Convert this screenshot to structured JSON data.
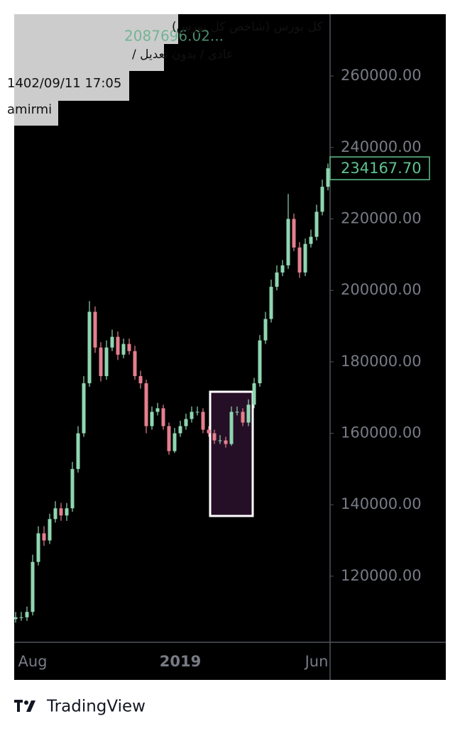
{
  "chart_data": {
    "type": "candlestick",
    "title": "کل بورس (شاخص کل بورس)",
    "subtitle": "عادی / بدون تعدیل /",
    "timestamp": "1402/09/11 17:05",
    "author": "amirmi",
    "overlay_value": "2087696.02...",
    "brand": "TradingView",
    "up_color": "#8fd6b0",
    "down_color": "#e57f8d",
    "categories": [
      null,
      null,
      null,
      "Aug",
      null,
      null,
      null,
      null,
      null,
      null,
      null,
      null,
      null,
      null,
      null,
      null,
      null,
      null,
      null,
      null,
      null,
      null,
      null,
      null,
      null,
      null,
      null,
      null,
      null,
      "2019",
      null,
      null,
      null,
      null,
      null,
      null,
      null,
      null,
      null,
      null,
      null,
      null,
      null,
      null,
      null,
      null,
      null,
      null,
      null,
      null,
      null,
      null,
      null,
      "Jun",
      null,
      null
    ],
    "open": [
      108000,
      108500,
      108500,
      110000,
      124000,
      132000,
      130000,
      136000,
      139000,
      137000,
      139000,
      150000,
      160000,
      174000,
      194000,
      184000,
      176000,
      184000,
      187000,
      182000,
      185000,
      183000,
      176000,
      174000,
      162000,
      166000,
      167000,
      162000,
      155000,
      160000,
      162000,
      164000,
      166000,
      166000,
      161000,
      160000,
      158000,
      158000,
      157000,
      166000,
      166000,
      163000,
      168000,
      174000,
      186000,
      192000,
      201000,
      205000,
      207000,
      220000,
      212000,
      205000,
      213000,
      215000,
      222000,
      229000
    ],
    "high": [
      110000,
      110000,
      111500,
      126000,
      134000,
      134000,
      137500,
      141000,
      140500,
      140500,
      152000,
      162000,
      176000,
      197000,
      195500,
      185500,
      186000,
      189000,
      188500,
      186500,
      186500,
      184500,
      177500,
      175000,
      167500,
      168500,
      168000,
      163000,
      161500,
      163500,
      165500,
      167500,
      167500,
      167000,
      162000,
      161000,
      159500,
      159000,
      167500,
      167500,
      167000,
      169500,
      175500,
      187500,
      194000,
      203000,
      207000,
      208500,
      227000,
      221500,
      213500,
      214500,
      217000,
      224000,
      231000,
      235500
    ],
    "low": [
      107000,
      107500,
      107500,
      109000,
      123000,
      128500,
      129000,
      135000,
      135500,
      135500,
      138000,
      149000,
      159000,
      173000,
      182500,
      174500,
      175000,
      183000,
      180500,
      181000,
      182000,
      175000,
      172500,
      160000,
      161000,
      165000,
      161000,
      154000,
      154500,
      159000,
      161000,
      163000,
      165000,
      160000,
      159000,
      157000,
      157000,
      156000,
      156500,
      165000,
      162000,
      162000,
      167000,
      173000,
      185000,
      191000,
      200000,
      204000,
      206000,
      211000,
      203500,
      204000,
      212000,
      214000,
      221000,
      228000
    ],
    "close": [
      108500,
      108500,
      110000,
      124000,
      132000,
      130000,
      136000,
      139000,
      137000,
      139000,
      150000,
      160000,
      174000,
      194000,
      184000,
      176000,
      184000,
      187000,
      182000,
      185000,
      183000,
      176000,
      174000,
      162000,
      166000,
      167000,
      162000,
      155000,
      160000,
      162000,
      164000,
      166000,
      166000,
      161000,
      160000,
      158000,
      158000,
      157000,
      166000,
      166000,
      163000,
      168000,
      174000,
      186000,
      192000,
      201000,
      205000,
      207000,
      220000,
      212000,
      205000,
      213000,
      215000,
      222000,
      229000,
      234167.7
    ],
    "last_price": {
      "value": 234167.7,
      "label": "234167.70"
    },
    "ylim": [
      101500,
      277300
    ],
    "yticks": [
      {
        "value": 120000,
        "label": "120000.00"
      },
      {
        "value": 140000,
        "label": "140000.00"
      },
      {
        "value": 160000,
        "label": "160000.00"
      },
      {
        "value": 180000,
        "label": "180000.00"
      },
      {
        "value": 200000,
        "label": "200000.00"
      },
      {
        "value": 220000,
        "label": "220000.00"
      },
      {
        "value": 240000,
        "label": "240000.00"
      },
      {
        "value": 260000,
        "label": "260000.00"
      }
    ]
  }
}
